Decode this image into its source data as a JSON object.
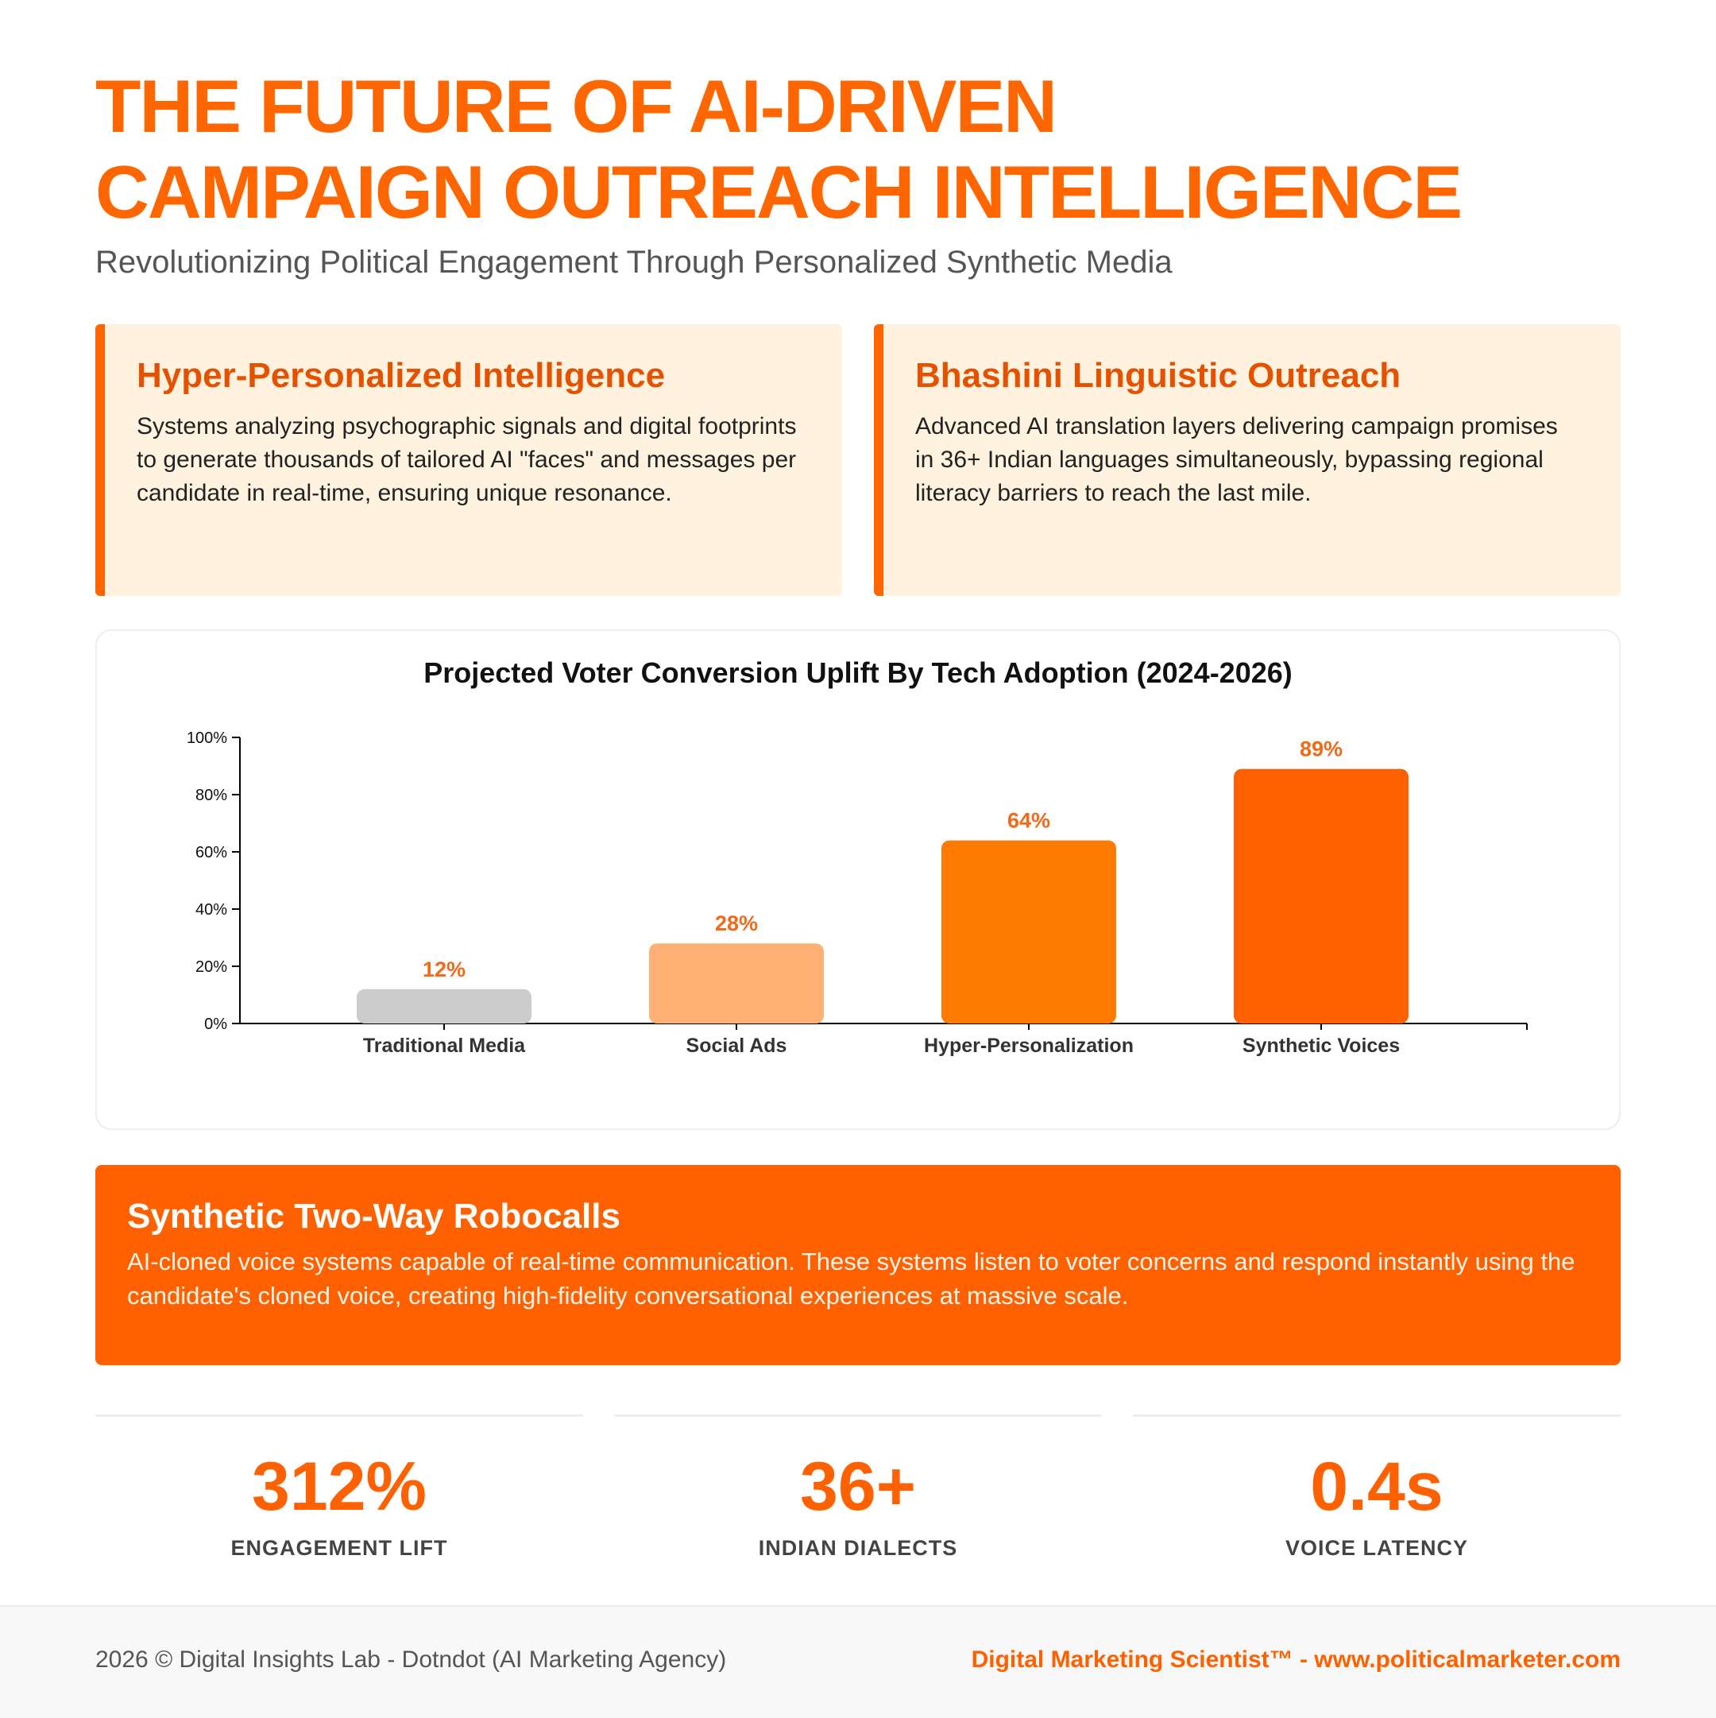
{
  "header": {
    "title_line1": "THE FUTURE OF AI-DRIVEN",
    "title_line2": "CAMPAIGN OUTREACH INTELLIGENCE",
    "subtitle": "Revolutionizing Political Engagement Through Personalized Synthetic Media"
  },
  "cards": [
    {
      "title": "Hyper-Personalized Intelligence",
      "body": "Systems analyzing psychographic signals and digital footprints to generate thousands of tailored AI \"faces\" and messages per candidate in real-time, ensuring unique resonance."
    },
    {
      "title": "Bhashini Linguistic Outreach",
      "body": "Advanced AI translation layers delivering campaign promises in 36+ Indian languages simultaneously, bypassing regional literacy barriers to reach the last mile."
    }
  ],
  "chart_data": {
    "type": "bar",
    "title": "Projected Voter Conversion Uplift By Tech Adoption (2024-2026)",
    "categories": [
      "Traditional Media",
      "Social Ads",
      "Hyper-Personalization",
      "Synthetic Voices"
    ],
    "values": [
      12,
      28,
      64,
      89
    ],
    "value_labels": [
      "12%",
      "28%",
      "64%",
      "89%"
    ],
    "colors": [
      "#cccccc",
      "#ffb074",
      "#ff7b00",
      "#ff6000"
    ],
    "label_color": "#f26a18",
    "ylim": [
      0,
      100
    ],
    "yticks": [
      0,
      20,
      40,
      60,
      80,
      100
    ],
    "ytick_labels": [
      "0%",
      "20%",
      "40%",
      "60%",
      "80%",
      "100%"
    ],
    "xlabel": "",
    "ylabel": "",
    "grid": false
  },
  "banner": {
    "title": "Synthetic Two-Way Robocalls",
    "body": "AI-cloned voice systems capable of real-time communication. These systems listen to voter concerns and respond instantly using the candidate's cloned voice, creating high-fidelity conversational experiences at massive scale."
  },
  "stats": [
    {
      "value": "312%",
      "label": "ENGAGEMENT LIFT"
    },
    {
      "value": "36+",
      "label": "INDIAN DIALECTS"
    },
    {
      "value": "0.4s",
      "label": "VOICE LATENCY"
    }
  ],
  "footer": {
    "copyright": "2026 © Digital Insights Lab - Dotndot (AI Marketing Agency)",
    "brand": "Digital Marketing Scientist™ - www.politicalmarketer.com"
  }
}
